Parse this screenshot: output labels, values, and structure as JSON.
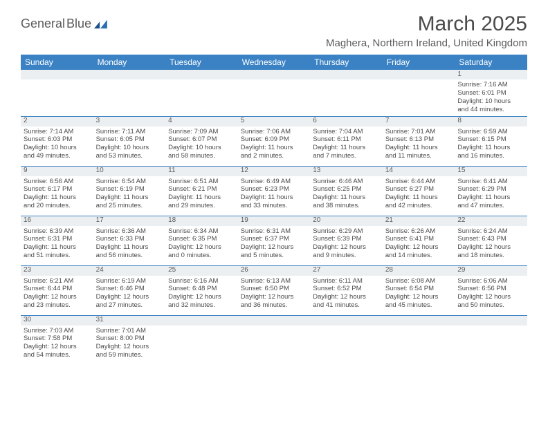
{
  "logo": {
    "textA": "General",
    "textB": "Blue"
  },
  "title": "March 2025",
  "subtitle": "Maghera, Northern Ireland, United Kingdom",
  "colors": {
    "header_bg": "#3b82c4",
    "header_fg": "#ffffff",
    "daynum_bg": "#eceff1",
    "text": "#4a4a4a",
    "rule": "#3b82c4"
  },
  "daysOfWeek": [
    "Sunday",
    "Monday",
    "Tuesday",
    "Wednesday",
    "Thursday",
    "Friday",
    "Saturday"
  ],
  "cells": [
    {
      "n": "",
      "l": [
        "",
        "",
        "",
        ""
      ]
    },
    {
      "n": "",
      "l": [
        "",
        "",
        "",
        ""
      ]
    },
    {
      "n": "",
      "l": [
        "",
        "",
        "",
        ""
      ]
    },
    {
      "n": "",
      "l": [
        "",
        "",
        "",
        ""
      ]
    },
    {
      "n": "",
      "l": [
        "",
        "",
        "",
        ""
      ]
    },
    {
      "n": "",
      "l": [
        "",
        "",
        "",
        ""
      ]
    },
    {
      "n": "1",
      "l": [
        "Sunrise: 7:16 AM",
        "Sunset: 6:01 PM",
        "Daylight: 10 hours",
        "and 44 minutes."
      ]
    },
    {
      "n": "2",
      "l": [
        "Sunrise: 7:14 AM",
        "Sunset: 6:03 PM",
        "Daylight: 10 hours",
        "and 49 minutes."
      ]
    },
    {
      "n": "3",
      "l": [
        "Sunrise: 7:11 AM",
        "Sunset: 6:05 PM",
        "Daylight: 10 hours",
        "and 53 minutes."
      ]
    },
    {
      "n": "4",
      "l": [
        "Sunrise: 7:09 AM",
        "Sunset: 6:07 PM",
        "Daylight: 10 hours",
        "and 58 minutes."
      ]
    },
    {
      "n": "5",
      "l": [
        "Sunrise: 7:06 AM",
        "Sunset: 6:09 PM",
        "Daylight: 11 hours",
        "and 2 minutes."
      ]
    },
    {
      "n": "6",
      "l": [
        "Sunrise: 7:04 AM",
        "Sunset: 6:11 PM",
        "Daylight: 11 hours",
        "and 7 minutes."
      ]
    },
    {
      "n": "7",
      "l": [
        "Sunrise: 7:01 AM",
        "Sunset: 6:13 PM",
        "Daylight: 11 hours",
        "and 11 minutes."
      ]
    },
    {
      "n": "8",
      "l": [
        "Sunrise: 6:59 AM",
        "Sunset: 6:15 PM",
        "Daylight: 11 hours",
        "and 16 minutes."
      ]
    },
    {
      "n": "9",
      "l": [
        "Sunrise: 6:56 AM",
        "Sunset: 6:17 PM",
        "Daylight: 11 hours",
        "and 20 minutes."
      ]
    },
    {
      "n": "10",
      "l": [
        "Sunrise: 6:54 AM",
        "Sunset: 6:19 PM",
        "Daylight: 11 hours",
        "and 25 minutes."
      ]
    },
    {
      "n": "11",
      "l": [
        "Sunrise: 6:51 AM",
        "Sunset: 6:21 PM",
        "Daylight: 11 hours",
        "and 29 minutes."
      ]
    },
    {
      "n": "12",
      "l": [
        "Sunrise: 6:49 AM",
        "Sunset: 6:23 PM",
        "Daylight: 11 hours",
        "and 33 minutes."
      ]
    },
    {
      "n": "13",
      "l": [
        "Sunrise: 6:46 AM",
        "Sunset: 6:25 PM",
        "Daylight: 11 hours",
        "and 38 minutes."
      ]
    },
    {
      "n": "14",
      "l": [
        "Sunrise: 6:44 AM",
        "Sunset: 6:27 PM",
        "Daylight: 11 hours",
        "and 42 minutes."
      ]
    },
    {
      "n": "15",
      "l": [
        "Sunrise: 6:41 AM",
        "Sunset: 6:29 PM",
        "Daylight: 11 hours",
        "and 47 minutes."
      ]
    },
    {
      "n": "16",
      "l": [
        "Sunrise: 6:39 AM",
        "Sunset: 6:31 PM",
        "Daylight: 11 hours",
        "and 51 minutes."
      ]
    },
    {
      "n": "17",
      "l": [
        "Sunrise: 6:36 AM",
        "Sunset: 6:33 PM",
        "Daylight: 11 hours",
        "and 56 minutes."
      ]
    },
    {
      "n": "18",
      "l": [
        "Sunrise: 6:34 AM",
        "Sunset: 6:35 PM",
        "Daylight: 12 hours",
        "and 0 minutes."
      ]
    },
    {
      "n": "19",
      "l": [
        "Sunrise: 6:31 AM",
        "Sunset: 6:37 PM",
        "Daylight: 12 hours",
        "and 5 minutes."
      ]
    },
    {
      "n": "20",
      "l": [
        "Sunrise: 6:29 AM",
        "Sunset: 6:39 PM",
        "Daylight: 12 hours",
        "and 9 minutes."
      ]
    },
    {
      "n": "21",
      "l": [
        "Sunrise: 6:26 AM",
        "Sunset: 6:41 PM",
        "Daylight: 12 hours",
        "and 14 minutes."
      ]
    },
    {
      "n": "22",
      "l": [
        "Sunrise: 6:24 AM",
        "Sunset: 6:43 PM",
        "Daylight: 12 hours",
        "and 18 minutes."
      ]
    },
    {
      "n": "23",
      "l": [
        "Sunrise: 6:21 AM",
        "Sunset: 6:44 PM",
        "Daylight: 12 hours",
        "and 23 minutes."
      ]
    },
    {
      "n": "24",
      "l": [
        "Sunrise: 6:19 AM",
        "Sunset: 6:46 PM",
        "Daylight: 12 hours",
        "and 27 minutes."
      ]
    },
    {
      "n": "25",
      "l": [
        "Sunrise: 6:16 AM",
        "Sunset: 6:48 PM",
        "Daylight: 12 hours",
        "and 32 minutes."
      ]
    },
    {
      "n": "26",
      "l": [
        "Sunrise: 6:13 AM",
        "Sunset: 6:50 PM",
        "Daylight: 12 hours",
        "and 36 minutes."
      ]
    },
    {
      "n": "27",
      "l": [
        "Sunrise: 6:11 AM",
        "Sunset: 6:52 PM",
        "Daylight: 12 hours",
        "and 41 minutes."
      ]
    },
    {
      "n": "28",
      "l": [
        "Sunrise: 6:08 AM",
        "Sunset: 6:54 PM",
        "Daylight: 12 hours",
        "and 45 minutes."
      ]
    },
    {
      "n": "29",
      "l": [
        "Sunrise: 6:06 AM",
        "Sunset: 6:56 PM",
        "Daylight: 12 hours",
        "and 50 minutes."
      ]
    },
    {
      "n": "30",
      "l": [
        "Sunrise: 7:03 AM",
        "Sunset: 7:58 PM",
        "Daylight: 12 hours",
        "and 54 minutes."
      ]
    },
    {
      "n": "31",
      "l": [
        "Sunrise: 7:01 AM",
        "Sunset: 8:00 PM",
        "Daylight: 12 hours",
        "and 59 minutes."
      ]
    },
    {
      "n": "",
      "l": [
        "",
        "",
        "",
        ""
      ]
    },
    {
      "n": "",
      "l": [
        "",
        "",
        "",
        ""
      ]
    },
    {
      "n": "",
      "l": [
        "",
        "",
        "",
        ""
      ]
    },
    {
      "n": "",
      "l": [
        "",
        "",
        "",
        ""
      ]
    },
    {
      "n": "",
      "l": [
        "",
        "",
        "",
        ""
      ]
    }
  ]
}
